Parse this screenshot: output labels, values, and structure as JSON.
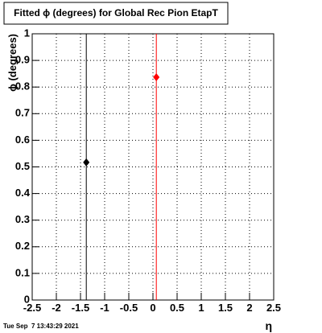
{
  "chart_data": {
    "type": "scatter",
    "title": "Fitted ϕ (degrees) for Global Rec Pion EtapT",
    "y_label": "ϕ (degrees)",
    "x_label": "η",
    "timestamp": "Tue Sep  7 13:43:29 2021",
    "series": [
      {
        "color": "#000000",
        "x": [
          -1.38
        ],
        "values": [
          0.517
        ]
      },
      {
        "color": "#ff0000",
        "x": [
          0.07
        ],
        "values": [
          0.837
        ]
      }
    ],
    "xlim": [
      -2.5,
      2.5
    ],
    "xticks": [
      -2.5,
      -2,
      -1.5,
      -1,
      -0.5,
      0,
      0.5,
      1,
      1.5,
      2,
      2.5
    ],
    "ylim": [
      0,
      1
    ],
    "yticks": [
      0,
      0.1,
      0.2,
      0.3,
      0.4,
      0.5,
      0.6,
      0.7,
      0.8,
      0.9,
      1
    ],
    "grid": true
  }
}
